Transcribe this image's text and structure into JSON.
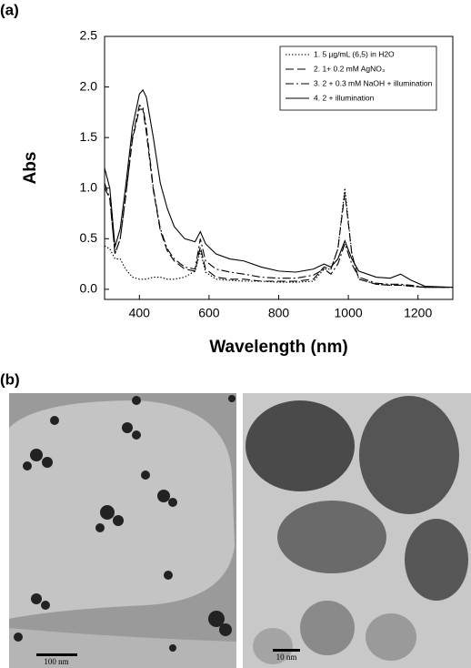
{
  "chart_data": {
    "type": "line",
    "x_label": "Wavelength (nm)",
    "y_label": "Abs",
    "xlim": [
      300,
      1300
    ],
    "ylim": [
      -0.1,
      2.5
    ],
    "xticks": [
      400,
      600,
      800,
      1000,
      1200
    ],
    "yticks": [
      {
        "value": 0,
        "label": "0.0"
      },
      {
        "value": 0.5,
        "label": "0.5"
      },
      {
        "value": 1,
        "label": "1.0"
      },
      {
        "value": 1.5,
        "label": "1.5"
      },
      {
        "value": 2,
        "label": "2.0"
      },
      {
        "value": 2.5,
        "label": "2.5"
      }
    ],
    "legend": "upper right",
    "x": [
      300,
      315,
      330,
      345,
      360,
      380,
      400,
      410,
      420,
      440,
      460,
      480,
      500,
      530,
      560,
      575,
      590,
      620,
      660,
      700,
      750,
      800,
      850,
      900,
      930,
      950,
      970,
      990,
      1010,
      1030,
      1080,
      1120,
      1150,
      1180,
      1220,
      1300
    ],
    "series": [
      {
        "name": "1. 5 µg/mL (6,5) in H2O",
        "color": "#000000",
        "style": "dotted",
        "values": [
          0.43,
          0.4,
          0.3,
          0.3,
          0.2,
          0.12,
          0.1,
          0.1,
          0.1,
          0.12,
          0.12,
          0.1,
          0.1,
          0.12,
          0.18,
          0.38,
          0.17,
          0.1,
          0.09,
          0.08,
          0.08,
          0.07,
          0.07,
          0.08,
          0.2,
          0.2,
          0.4,
          1.0,
          0.35,
          0.1,
          0.05,
          0.04,
          0.04,
          0.03,
          0.02,
          0.02
        ]
      },
      {
        "name": "2. 1+ 0.2 mM AgNO₃",
        "color": "#000000",
        "style": "dashed",
        "values": [
          1.0,
          0.9,
          0.35,
          0.5,
          0.9,
          1.48,
          1.78,
          1.78,
          1.55,
          0.98,
          0.58,
          0.38,
          0.28,
          0.2,
          0.18,
          0.42,
          0.2,
          0.12,
          0.1,
          0.1,
          0.08,
          0.08,
          0.08,
          0.1,
          0.22,
          0.2,
          0.4,
          0.95,
          0.35,
          0.1,
          0.05,
          0.04,
          0.04,
          0.03,
          0.02,
          0.02
        ]
      },
      {
        "name": "3. 2 + 0.3 mM NaOH + illumination",
        "color": "#000000",
        "style": "dashdot",
        "values": [
          1.05,
          0.9,
          0.35,
          0.5,
          0.9,
          1.5,
          1.82,
          1.8,
          1.6,
          1.0,
          0.6,
          0.4,
          0.3,
          0.22,
          0.2,
          0.5,
          0.28,
          0.2,
          0.17,
          0.15,
          0.12,
          0.11,
          0.11,
          0.14,
          0.2,
          0.15,
          0.25,
          0.45,
          0.25,
          0.12,
          0.06,
          0.05,
          0.05,
          0.04,
          0.02,
          0.02
        ]
      },
      {
        "name": "4. 2 + illumination",
        "color": "#000000",
        "style": "solid",
        "values": [
          1.2,
          1.0,
          0.42,
          0.6,
          1.0,
          1.6,
          1.93,
          1.97,
          1.9,
          1.5,
          1.05,
          0.8,
          0.62,
          0.5,
          0.47,
          0.57,
          0.45,
          0.35,
          0.3,
          0.28,
          0.22,
          0.18,
          0.17,
          0.2,
          0.25,
          0.22,
          0.3,
          0.48,
          0.3,
          0.18,
          0.12,
          0.11,
          0.15,
          0.09,
          0.03,
          0.02
        ]
      }
    ]
  },
  "panels": {
    "a": "(a)",
    "b": "(b)",
    "scale_left": "100 nm",
    "scale_right": "10 nm"
  }
}
